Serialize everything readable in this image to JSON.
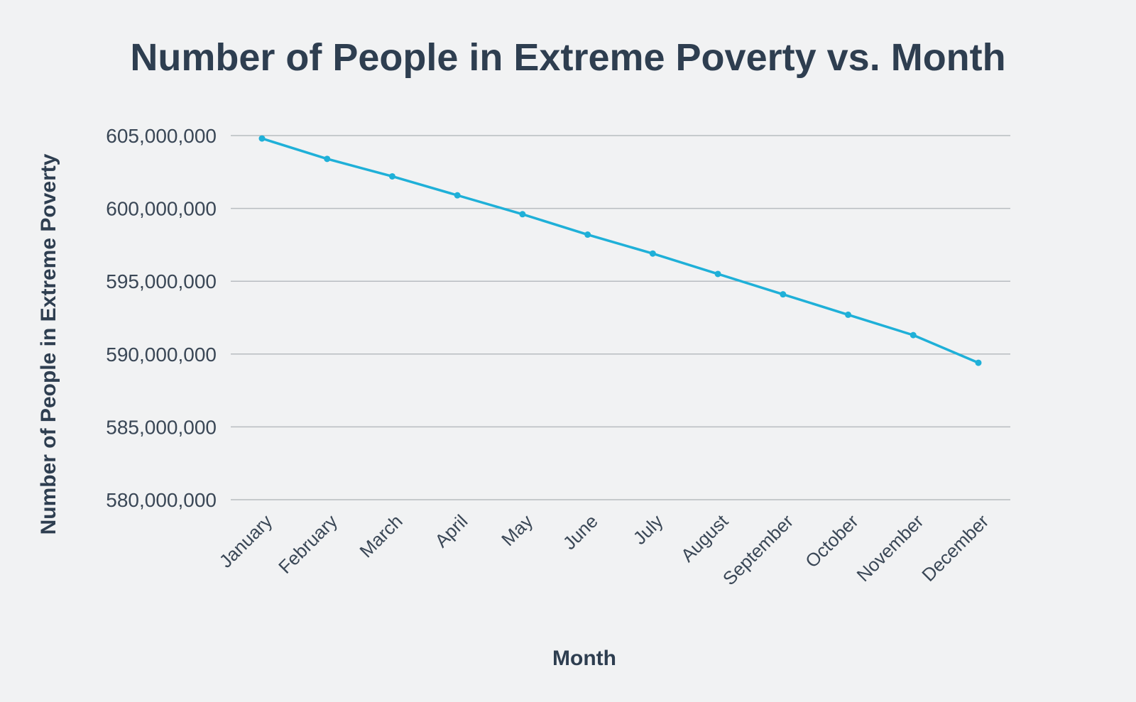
{
  "chart_data": {
    "type": "line",
    "title": "Number of People in Extreme Poverty vs. Month",
    "xlabel": "Month",
    "ylabel": "Number of People in Extreme Poverty",
    "categories": [
      "January",
      "February",
      "March",
      "April",
      "May",
      "June",
      "July",
      "August",
      "September",
      "October",
      "November",
      "December"
    ],
    "series": [
      {
        "values": [
          604800000,
          603400000,
          602200000,
          600900000,
          599600000,
          598200000,
          596900000,
          595500000,
          594100000,
          592700000,
          591300000,
          589400000
        ]
      }
    ],
    "ylim": [
      580000000,
      605000000
    ],
    "yticks": [
      605000000,
      600000000,
      595000000,
      590000000,
      585000000,
      580000000
    ],
    "ytick_labels": [
      "605,000,000",
      "600,000,000",
      "595,000,000",
      "590,000,000",
      "585,000,000",
      "580,000,000"
    ],
    "grid": true,
    "line_color": "#1fb0d8",
    "grid_color": "#b8bcc0"
  }
}
